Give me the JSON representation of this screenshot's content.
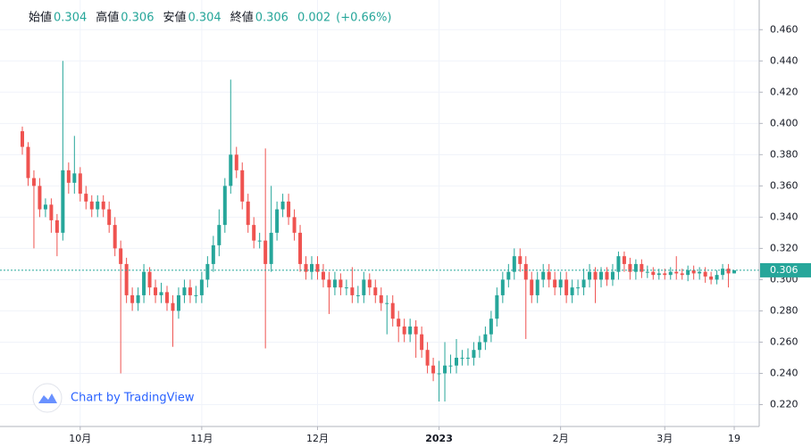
{
  "chart_data": {
    "type": "candlestick",
    "legend": [
      {
        "label": "始値",
        "value": 0.304
      },
      {
        "label": "高値",
        "value": 0.306
      },
      {
        "label": "安値",
        "value": 0.304
      },
      {
        "label": "終値",
        "value": 0.306
      }
    ],
    "change": 0.002,
    "change_pct": "(+0.66%)",
    "watermark": "Chart by TradingView",
    "last_price": 0.306,
    "up_color": "#26a69a",
    "down_color": "#ef5350",
    "grid": true,
    "ylim": [
      0.206,
      0.479
    ],
    "yticks": [
      {
        "value": 0.22,
        "label": "0.220"
      },
      {
        "value": 0.24,
        "label": "0.240"
      },
      {
        "value": 0.26,
        "label": "0.260"
      },
      {
        "value": 0.28,
        "label": "0.280"
      },
      {
        "value": 0.3,
        "label": "0.300"
      },
      {
        "value": 0.32,
        "label": "0.320"
      },
      {
        "value": 0.34,
        "label": "0.340"
      },
      {
        "value": 0.36,
        "label": "0.360"
      },
      {
        "value": 0.38,
        "label": "0.380"
      },
      {
        "value": 0.4,
        "label": "0.400"
      },
      {
        "value": 0.42,
        "label": "0.420"
      },
      {
        "value": 0.44,
        "label": "0.440"
      },
      {
        "value": 0.46,
        "label": "0.460"
      }
    ],
    "categories": [
      null,
      null,
      null,
      null,
      null,
      null,
      null,
      null,
      null,
      null,
      "10月",
      null,
      null,
      null,
      null,
      null,
      null,
      null,
      null,
      null,
      null,
      null,
      null,
      null,
      null,
      null,
      null,
      null,
      null,
      null,
      null,
      "11月",
      null,
      null,
      null,
      null,
      null,
      null,
      null,
      null,
      null,
      null,
      null,
      null,
      null,
      null,
      null,
      null,
      null,
      null,
      null,
      "12月",
      null,
      null,
      null,
      null,
      null,
      null,
      null,
      null,
      null,
      null,
      null,
      null,
      null,
      null,
      null,
      null,
      null,
      null,
      null,
      null,
      "2023",
      null,
      null,
      null,
      null,
      null,
      null,
      null,
      null,
      null,
      null,
      null,
      null,
      null,
      null,
      null,
      null,
      null,
      null,
      null,
      null,
      "2月",
      null,
      null,
      null,
      null,
      null,
      null,
      null,
      null,
      null,
      null,
      null,
      null,
      null,
      null,
      null,
      null,
      null,
      "3月",
      null,
      null,
      null,
      null,
      null,
      null,
      null,
      null,
      null,
      null,
      null,
      "19"
    ],
    "open": [
      0.395,
      0.385,
      0.365,
      0.36,
      0.345,
      0.348,
      0.338,
      0.33,
      0.37,
      0.362,
      0.368,
      0.355,
      0.35,
      0.345,
      0.35,
      0.345,
      0.335,
      0.32,
      0.31,
      0.29,
      0.285,
      0.29,
      0.305,
      0.295,
      0.29,
      0.292,
      0.285,
      0.28,
      0.29,
      0.295,
      0.29,
      0.29,
      0.3,
      0.31,
      0.322,
      0.335,
      0.36,
      0.38,
      0.37,
      0.35,
      0.335,
      0.325,
      0.325,
      0.31,
      0.33,
      0.345,
      0.35,
      0.34,
      0.33,
      0.31,
      0.305,
      0.31,
      0.305,
      0.3,
      0.295,
      0.3,
      0.295,
      0.295,
      0.29,
      0.29,
      0.3,
      0.295,
      0.29,
      0.285,
      0.285,
      0.275,
      0.27,
      0.265,
      0.27,
      0.265,
      0.255,
      0.245,
      0.24,
      0.24,
      0.245,
      0.245,
      0.25,
      0.25,
      0.25,
      0.255,
      0.26,
      0.265,
      0.275,
      0.29,
      0.3,
      0.305,
      0.315,
      0.31,
      0.3,
      0.29,
      0.3,
      0.305,
      0.3,
      0.295,
      0.3,
      0.29,
      0.295,
      0.295,
      0.3,
      0.305,
      0.3,
      0.305,
      0.3,
      0.305,
      0.315,
      0.31,
      0.305,
      0.31,
      0.305,
      0.305,
      0.303,
      0.304,
      0.303,
      0.305,
      0.304,
      0.303,
      0.306,
      0.304,
      0.305,
      0.302,
      0.3,
      0.303,
      0.307,
      0.304
    ],
    "high": [
      0.398,
      0.388,
      0.37,
      0.365,
      0.352,
      0.352,
      0.342,
      0.44,
      0.375,
      0.392,
      0.372,
      0.36,
      0.354,
      0.354,
      0.354,
      0.35,
      0.34,
      0.325,
      0.314,
      0.295,
      0.295,
      0.31,
      0.308,
      0.3,
      0.298,
      0.296,
      0.29,
      0.295,
      0.3,
      0.3,
      0.296,
      0.305,
      0.315,
      0.328,
      0.345,
      0.365,
      0.428,
      0.385,
      0.375,
      0.355,
      0.34,
      0.33,
      0.384,
      0.36,
      0.35,
      0.355,
      0.355,
      0.345,
      0.335,
      0.315,
      0.315,
      0.315,
      0.31,
      0.305,
      0.305,
      0.304,
      0.3,
      0.308,
      0.296,
      0.305,
      0.304,
      0.3,
      0.295,
      0.29,
      0.29,
      0.28,
      0.275,
      0.275,
      0.274,
      0.27,
      0.26,
      0.25,
      0.248,
      0.26,
      0.252,
      0.262,
      0.255,
      0.256,
      0.26,
      0.264,
      0.27,
      0.28,
      0.295,
      0.305,
      0.31,
      0.32,
      0.32,
      0.315,
      0.305,
      0.305,
      0.31,
      0.31,
      0.305,
      0.305,
      0.305,
      0.3,
      0.3,
      0.307,
      0.31,
      0.308,
      0.308,
      0.308,
      0.31,
      0.318,
      0.318,
      0.314,
      0.313,
      0.313,
      0.309,
      0.308,
      0.307,
      0.307,
      0.308,
      0.315,
      0.307,
      0.309,
      0.309,
      0.308,
      0.308,
      0.305,
      0.306,
      0.31,
      0.31,
      0.306
    ],
    "low": [
      0.38,
      0.36,
      0.32,
      0.34,
      0.34,
      0.33,
      0.315,
      0.325,
      0.355,
      0.355,
      0.35,
      0.345,
      0.34,
      0.34,
      0.34,
      0.33,
      0.315,
      0.24,
      0.285,
      0.28,
      0.28,
      0.285,
      0.29,
      0.285,
      0.285,
      0.28,
      0.257,
      0.275,
      0.285,
      0.285,
      0.285,
      0.285,
      0.295,
      0.305,
      0.315,
      0.33,
      0.355,
      0.365,
      0.345,
      0.33,
      0.32,
      0.32,
      0.256,
      0.305,
      0.325,
      0.34,
      0.335,
      0.325,
      0.305,
      0.3,
      0.3,
      0.3,
      0.295,
      0.278,
      0.29,
      0.29,
      0.29,
      0.285,
      0.285,
      0.285,
      0.29,
      0.285,
      0.28,
      0.265,
      0.27,
      0.26,
      0.26,
      0.26,
      0.25,
      0.25,
      0.24,
      0.235,
      0.222,
      0.222,
      0.24,
      0.24,
      0.245,
      0.245,
      0.245,
      0.25,
      0.255,
      0.26,
      0.27,
      0.285,
      0.295,
      0.3,
      0.305,
      0.262,
      0.285,
      0.285,
      0.295,
      0.295,
      0.29,
      0.29,
      0.285,
      0.285,
      0.29,
      0.29,
      0.295,
      0.285,
      0.295,
      0.296,
      0.296,
      0.3,
      0.305,
      0.3,
      0.3,
      0.301,
      0.301,
      0.3,
      0.3,
      0.3,
      0.3,
      0.3,
      0.3,
      0.299,
      0.3,
      0.3,
      0.298,
      0.297,
      0.297,
      0.3,
      0.295,
      0.304
    ],
    "close": [
      0.385,
      0.365,
      0.36,
      0.345,
      0.348,
      0.338,
      0.33,
      0.37,
      0.362,
      0.368,
      0.355,
      0.35,
      0.345,
      0.35,
      0.345,
      0.335,
      0.32,
      0.31,
      0.29,
      0.285,
      0.29,
      0.305,
      0.295,
      0.29,
      0.292,
      0.285,
      0.28,
      0.29,
      0.295,
      0.29,
      0.29,
      0.3,
      0.31,
      0.322,
      0.335,
      0.36,
      0.38,
      0.37,
      0.35,
      0.335,
      0.325,
      0.325,
      0.31,
      0.33,
      0.345,
      0.35,
      0.34,
      0.33,
      0.31,
      0.305,
      0.31,
      0.305,
      0.3,
      0.295,
      0.3,
      0.295,
      0.295,
      0.29,
      0.29,
      0.3,
      0.295,
      0.29,
      0.285,
      0.285,
      0.275,
      0.27,
      0.265,
      0.27,
      0.265,
      0.255,
      0.245,
      0.24,
      0.24,
      0.245,
      0.245,
      0.25,
      0.25,
      0.25,
      0.255,
      0.26,
      0.265,
      0.275,
      0.29,
      0.3,
      0.305,
      0.315,
      0.31,
      0.3,
      0.29,
      0.3,
      0.305,
      0.3,
      0.295,
      0.3,
      0.29,
      0.295,
      0.295,
      0.3,
      0.305,
      0.3,
      0.305,
      0.3,
      0.305,
      0.315,
      0.31,
      0.305,
      0.31,
      0.305,
      0.305,
      0.303,
      0.304,
      0.303,
      0.305,
      0.304,
      0.303,
      0.306,
      0.304,
      0.305,
      0.302,
      0.3,
      0.303,
      0.307,
      0.304,
      0.306
    ]
  }
}
